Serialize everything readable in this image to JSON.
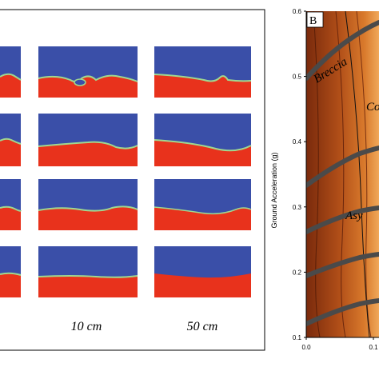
{
  "left_panel": {
    "column_labels": [
      "10 cm",
      "50 cm"
    ]
  },
  "right_panel": {
    "panel_letter": "B",
    "regime_labels": [
      "Breccia",
      "Co",
      "Asy"
    ],
    "chart_data": {
      "type": "heatmap",
      "title": "",
      "xlabel": "",
      "ylabel": "Ground Acceleration (g)",
      "y_ticks": [
        "0.1",
        "0.2",
        "0.3",
        "0.4",
        "0.5",
        "0.6"
      ],
      "x_ticks": [
        "0.0",
        "0.1"
      ],
      "ylim": [
        0.1,
        0.6
      ],
      "colors": {
        "dark": "#7a2a0c",
        "mid": "#c65f1c",
        "light": "#f4b36b",
        "boundary": "#4a4a4a"
      }
    }
  },
  "colors": {
    "fluid_blue": "#3a4fa8",
    "fluid_red": "#e8321c",
    "interface": "#9fd890"
  }
}
